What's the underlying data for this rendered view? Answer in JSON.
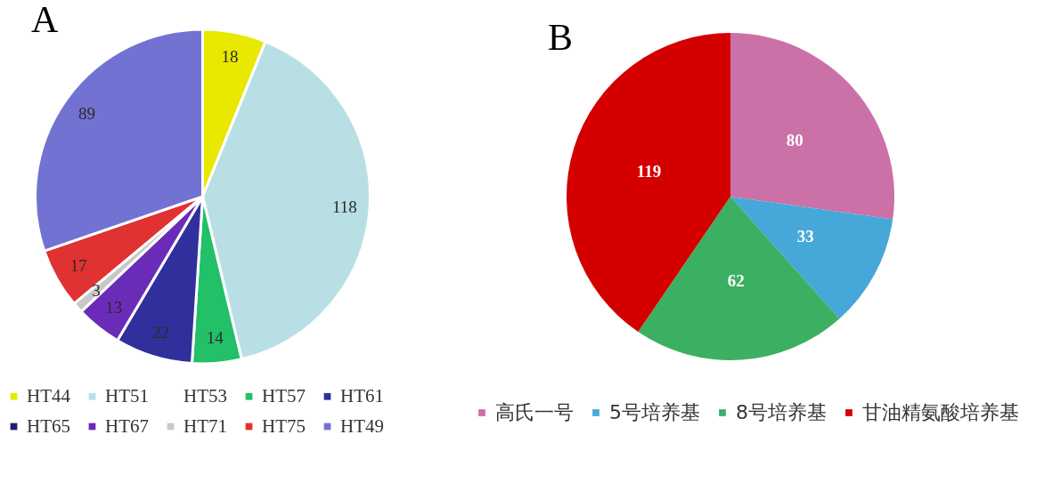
{
  "chart_data": [
    {
      "type": "pie",
      "title": "A",
      "categories": [
        "HT44",
        "HT51",
        "HT53",
        "HT57",
        "HT61",
        "HT65",
        "HT67",
        "HT71",
        "HT75",
        "HT49"
      ],
      "values": [
        18,
        118,
        null,
        14,
        22,
        null,
        13,
        3,
        17,
        89
      ],
      "colors": [
        "#e8e800",
        "#b8e0e4",
        "#ffffff",
        "#22c068",
        "#30309c",
        "#1e1e72",
        "#6a2cb8",
        "#c8c8c8",
        "#e03232",
        "#7272d2"
      ],
      "data_labels": true,
      "legend": "bottom"
    },
    {
      "type": "pie",
      "title": "B",
      "categories": [
        "高氏一号",
        "5号培养基",
        "8号培养基",
        "甘油精氨酸培养基"
      ],
      "values": [
        80,
        33,
        62,
        119
      ],
      "colors": [
        "#cc70a8",
        "#46a8d8",
        "#3cb062",
        "#d40000"
      ],
      "data_labels": true,
      "legend": "bottom"
    }
  ]
}
